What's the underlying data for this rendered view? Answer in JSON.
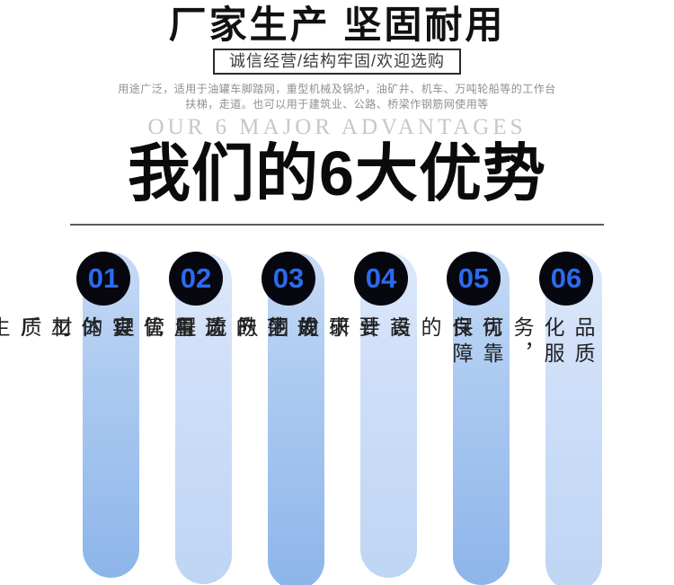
{
  "header": {
    "main_title": "厂家生产 坚固耐用",
    "subtitle_box": "诚信经营/结构牢固/欢迎选购",
    "description_line1": "用途广泛，适用于油罐车脚踏网，重型机械及锅炉，油矿井、机车、万吨轮船等的工作台",
    "description_line2": "扶梯，走道。也可以用于建筑业、公路、桥梁作钢筋网使用等",
    "watermark": "OUR 6 MAJOR ADVANTAGES",
    "section_title": "我们的6大优势"
  },
  "advantages": [
    {
      "number": "01",
      "text": "实体工厂生产"
    },
    {
      "number": "02",
      "text": "选用优良的材质"
    },
    {
      "number": "03",
      "text": "规范的质量管理"
    },
    {
      "number": "04",
      "text": "高要求的生产流程"
    },
    {
      "number": "05",
      "text": "优良的设计研发团队"
    },
    {
      "number": "06",
      "text": "品质化服务，可靠保障"
    }
  ],
  "colors": {
    "number_blue": "#2c6bf0",
    "circle_black": "#07070f",
    "pill_dark_top": "#c6dbf6",
    "pill_dark_bottom": "#8db5ea",
    "pill_light_top": "#dde8fb",
    "pill_light_bottom": "#bed5f4",
    "title_black": "#111111",
    "watermark_gray": "#c7c7c7",
    "description_gray": "#8f8f8f"
  }
}
